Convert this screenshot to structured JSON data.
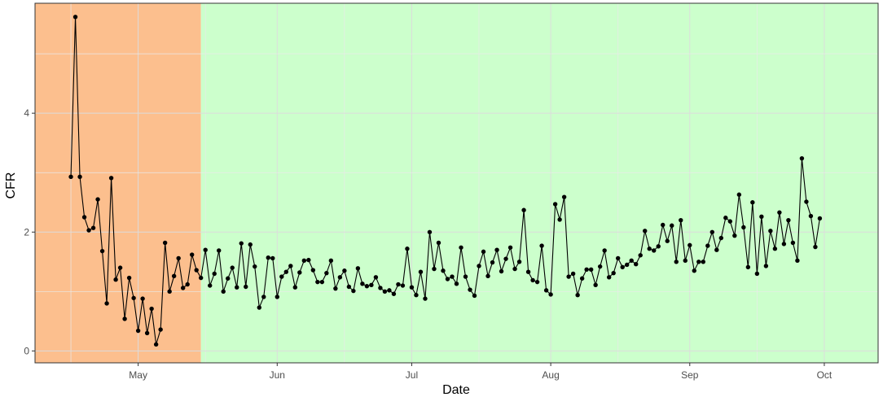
{
  "chart_data": {
    "type": "line",
    "title": "",
    "xlabel": "Date",
    "ylabel": "CFR",
    "x_ticks": [
      "May",
      "Jun",
      "Jul",
      "Aug",
      "Sep",
      "Oct"
    ],
    "y_ticks": [
      "0",
      "2",
      "4"
    ],
    "ylim": [
      -0.2,
      5.85
    ],
    "grid": true,
    "colors": {
      "phase_1": "#fcbf8e",
      "phase_2": "#ccffcc",
      "line": "#000000",
      "grid_major": "#dcdcdc",
      "grid_minor": "#e9e9e9"
    },
    "phases": [
      {
        "start": "2020-04-08",
        "end": "2020-05-15"
      },
      {
        "start": "2020-05-15",
        "end": "2020-10-13"
      }
    ],
    "xlim": [
      "2020-04-08",
      "2020-10-13"
    ],
    "series": [
      {
        "x": [
          "2020-04-16",
          "2020-04-17",
          "2020-04-18",
          "2020-04-19",
          "2020-04-20",
          "2020-04-21",
          "2020-04-22",
          "2020-04-23",
          "2020-04-24",
          "2020-04-25",
          "2020-04-26",
          "2020-04-27",
          "2020-04-28",
          "2020-04-29",
          "2020-04-30",
          "2020-05-01",
          "2020-05-02",
          "2020-05-03",
          "2020-05-04",
          "2020-05-05",
          "2020-05-06",
          "2020-05-07",
          "2020-05-08",
          "2020-05-09",
          "2020-05-10",
          "2020-05-11",
          "2020-05-12",
          "2020-05-13",
          "2020-05-14",
          "2020-05-15",
          "2020-05-16",
          "2020-05-17",
          "2020-05-18",
          "2020-05-19",
          "2020-05-20",
          "2020-05-21",
          "2020-05-22",
          "2020-05-23",
          "2020-05-24",
          "2020-05-25",
          "2020-05-26",
          "2020-05-27",
          "2020-05-28",
          "2020-05-29",
          "2020-05-30",
          "2020-05-31",
          "2020-06-01",
          "2020-06-02",
          "2020-06-03",
          "2020-06-04",
          "2020-06-05",
          "2020-06-06",
          "2020-06-07",
          "2020-06-08",
          "2020-06-09",
          "2020-06-10",
          "2020-06-11",
          "2020-06-12",
          "2020-06-13",
          "2020-06-14",
          "2020-06-15",
          "2020-06-16",
          "2020-06-17",
          "2020-06-18",
          "2020-06-19",
          "2020-06-20",
          "2020-06-21",
          "2020-06-22",
          "2020-06-23",
          "2020-06-24",
          "2020-06-25",
          "2020-06-26",
          "2020-06-27",
          "2020-06-28",
          "2020-06-29",
          "2020-06-30",
          "2020-07-01",
          "2020-07-02",
          "2020-07-03",
          "2020-07-04",
          "2020-07-05",
          "2020-07-06",
          "2020-07-07",
          "2020-07-08",
          "2020-07-09",
          "2020-07-10",
          "2020-07-11",
          "2020-07-12",
          "2020-07-13",
          "2020-07-14",
          "2020-07-15",
          "2020-07-16",
          "2020-07-17",
          "2020-07-18",
          "2020-07-19",
          "2020-07-20",
          "2020-07-21",
          "2020-07-22",
          "2020-07-23",
          "2020-07-24",
          "2020-07-25",
          "2020-07-26",
          "2020-07-27",
          "2020-07-28",
          "2020-07-29",
          "2020-07-30",
          "2020-07-31",
          "2020-08-01",
          "2020-08-02",
          "2020-08-03",
          "2020-08-04",
          "2020-08-05",
          "2020-08-06",
          "2020-08-07",
          "2020-08-08",
          "2020-08-09",
          "2020-08-10",
          "2020-08-11",
          "2020-08-12",
          "2020-08-13",
          "2020-08-14",
          "2020-08-15",
          "2020-08-16",
          "2020-08-17",
          "2020-08-18",
          "2020-08-19",
          "2020-08-20",
          "2020-08-21",
          "2020-08-22",
          "2020-08-23",
          "2020-08-24",
          "2020-08-25",
          "2020-08-26",
          "2020-08-27",
          "2020-08-28",
          "2020-08-29",
          "2020-08-30",
          "2020-08-31",
          "2020-09-01",
          "2020-09-02",
          "2020-09-03",
          "2020-09-04",
          "2020-09-05",
          "2020-09-06",
          "2020-09-07",
          "2020-09-08",
          "2020-09-09",
          "2020-09-10",
          "2020-09-11",
          "2020-09-12",
          "2020-09-13",
          "2020-09-14",
          "2020-09-15",
          "2020-09-16",
          "2020-09-17",
          "2020-09-18",
          "2020-09-19",
          "2020-09-20",
          "2020-09-21",
          "2020-09-22",
          "2020-09-23",
          "2020-09-24",
          "2020-09-25",
          "2020-09-26",
          "2020-09-27",
          "2020-09-28",
          "2020-09-29",
          "2020-09-30"
        ],
        "y": [
          2.93,
          5.62,
          2.93,
          2.25,
          2.03,
          2.07,
          2.55,
          1.68,
          0.8,
          2.91,
          1.2,
          1.4,
          0.54,
          1.23,
          0.89,
          0.34,
          0.88,
          0.3,
          0.71,
          0.11,
          0.36,
          1.82,
          1.0,
          1.26,
          1.56,
          1.06,
          1.12,
          1.62,
          1.36,
          1.23,
          1.7,
          1.1,
          1.3,
          1.69,
          1.0,
          1.22,
          1.4,
          1.07,
          1.81,
          1.08,
          1.79,
          1.42,
          0.73,
          0.91,
          1.57,
          1.56,
          0.91,
          1.25,
          1.33,
          1.43,
          1.07,
          1.32,
          1.52,
          1.53,
          1.36,
          1.16,
          1.16,
          1.31,
          1.52,
          1.05,
          1.24,
          1.35,
          1.08,
          1.01,
          1.39,
          1.13,
          1.09,
          1.11,
          1.24,
          1.06,
          1.0,
          1.02,
          0.96,
          1.12,
          1.1,
          1.72,
          1.07,
          0.94,
          1.33,
          0.88,
          2.0,
          1.38,
          1.82,
          1.35,
          1.21,
          1.25,
          1.13,
          1.74,
          1.25,
          1.03,
          0.93,
          1.43,
          1.67,
          1.26,
          1.49,
          1.7,
          1.34,
          1.55,
          1.74,
          1.38,
          1.5,
          2.37,
          1.33,
          1.19,
          1.16,
          1.77,
          1.02,
          0.95,
          2.47,
          2.21,
          2.59,
          1.25,
          1.3,
          0.94,
          1.22,
          1.37,
          1.37,
          1.11,
          1.42,
          1.69,
          1.24,
          1.31,
          1.56,
          1.41,
          1.45,
          1.52,
          1.46,
          1.61,
          2.02,
          1.72,
          1.69,
          1.76,
          2.12,
          1.85,
          2.11,
          1.5,
          2.2,
          1.52,
          1.78,
          1.35,
          1.5,
          1.5,
          1.77,
          2.0,
          1.7,
          1.9,
          2.24,
          2.18,
          1.94,
          2.63,
          2.08,
          1.41,
          2.5,
          1.3,
          2.26,
          1.43,
          2.02,
          1.72,
          2.33,
          1.8,
          2.2,
          1.82,
          1.52,
          3.24,
          2.51,
          2.27,
          1.75,
          2.23
        ]
      }
    ]
  }
}
